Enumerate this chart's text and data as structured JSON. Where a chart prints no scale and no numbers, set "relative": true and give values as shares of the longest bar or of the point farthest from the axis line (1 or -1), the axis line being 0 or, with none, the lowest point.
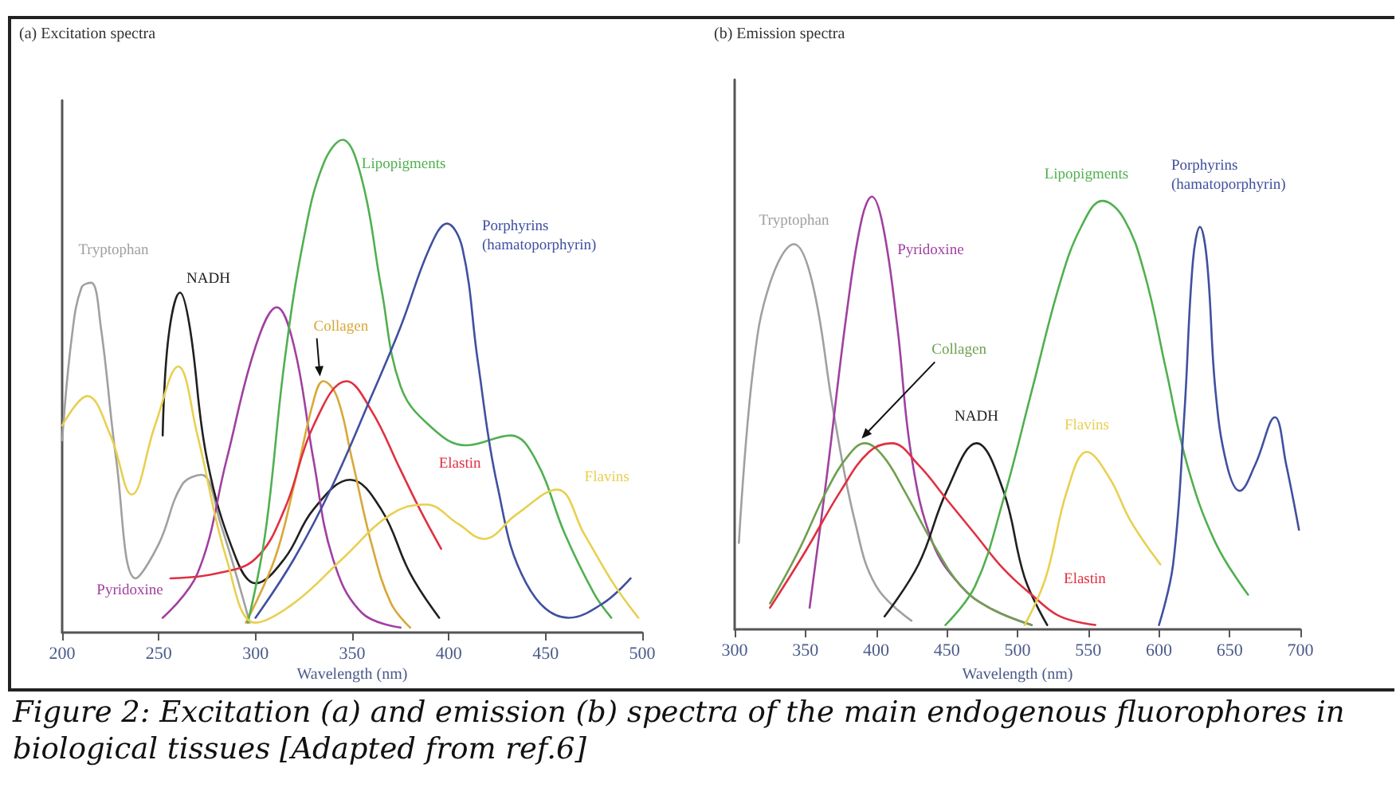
{
  "chart_data": [
    {
      "type": "line",
      "title": "(a) Excitation spectra",
      "xlabel": "Wavelength (nm)",
      "relative": true,
      "xlim": [
        200,
        500
      ],
      "xticks": [
        200,
        250,
        300,
        350,
        400,
        450,
        500
      ],
      "tick_labels": "x",
      "legend": false,
      "grid": false,
      "marker": "none",
      "series": [
        {
          "name": "Tryptophan",
          "color": "#a0a0a0",
          "x": [
            200,
            205,
            210,
            215,
            220,
            228,
            238,
            250,
            262,
            272,
            282,
            297
          ],
          "values": [
            0.39,
            0.6,
            0.7,
            0.71,
            0.62,
            0.35,
            0.11,
            0.18,
            0.3,
            0.32,
            0.22,
            0.02
          ]
        },
        {
          "name": "NADH",
          "color": "#202020",
          "x": [
            252,
            255,
            261,
            266,
            275,
            290,
            300,
            315,
            330,
            349,
            365,
            380,
            395
          ],
          "values": [
            0.4,
            0.6,
            0.69,
            0.62,
            0.35,
            0.15,
            0.1,
            0.15,
            0.25,
            0.31,
            0.25,
            0.12,
            0.03
          ]
        },
        {
          "name": "Pyridoxine",
          "color": "#a040a0",
          "x": [
            252,
            270,
            285,
            300,
            311,
            320,
            330,
            340,
            355,
            375
          ],
          "values": [
            0.03,
            0.12,
            0.35,
            0.58,
            0.66,
            0.58,
            0.35,
            0.15,
            0.04,
            0.01
          ]
        },
        {
          "name": "Collagen",
          "color": "#d8a838",
          "x": [
            295,
            310,
            320,
            330,
            335,
            342,
            350,
            360,
            370,
            380
          ],
          "values": [
            0.02,
            0.15,
            0.3,
            0.47,
            0.51,
            0.48,
            0.35,
            0.18,
            0.06,
            0.01
          ]
        },
        {
          "name": "Elastin",
          "color": "#e03040",
          "x": [
            256,
            280,
            300,
            315,
            330,
            347,
            360,
            375,
            385,
            396
          ],
          "values": [
            0.11,
            0.12,
            0.15,
            0.25,
            0.42,
            0.51,
            0.45,
            0.33,
            0.25,
            0.17
          ]
        },
        {
          "name": "Lipopigments",
          "color": "#50b050",
          "x": [
            296,
            305,
            315,
            325,
            335,
            345,
            355,
            365,
            375,
            390,
            409,
            432,
            445,
            460,
            475,
            484
          ],
          "values": [
            0.02,
            0.2,
            0.55,
            0.8,
            0.95,
            1.0,
            0.92,
            0.7,
            0.5,
            0.42,
            0.38,
            0.4,
            0.35,
            0.2,
            0.08,
            0.03
          ]
        },
        {
          "name": "Porphyrins (hamatoporphyrin)",
          "color": "#4050a0",
          "x": [
            300,
            320,
            340,
            360,
            375,
            390,
            399,
            407,
            415,
            425,
            440,
            462,
            480,
            494
          ],
          "values": [
            0.03,
            0.15,
            0.3,
            0.48,
            0.62,
            0.78,
            0.83,
            0.78,
            0.55,
            0.3,
            0.1,
            0.03,
            0.06,
            0.11
          ]
        },
        {
          "name": "Flavins",
          "color": "#e8d050",
          "x": [
            200,
            213,
            225,
            236,
            248,
            260,
            270,
            285,
            300,
            320,
            345,
            370,
            388,
            405,
            418,
            435,
            456,
            470,
            485,
            498
          ],
          "values": [
            0.42,
            0.48,
            0.4,
            0.28,
            0.42,
            0.54,
            0.4,
            0.15,
            0.02,
            0.06,
            0.15,
            0.24,
            0.26,
            0.22,
            0.19,
            0.24,
            0.29,
            0.2,
            0.1,
            0.03
          ]
        }
      ]
    },
    {
      "type": "line",
      "title": "(b) Emission spectra",
      "xlabel": "Wavelength (nm)",
      "relative": true,
      "xlim": [
        300,
        700
      ],
      "xticks": [
        300,
        350,
        400,
        450,
        500,
        550,
        600,
        650,
        700
      ],
      "tick_labels": "x",
      "legend": false,
      "grid": false,
      "marker": "none",
      "annotations": [
        "Figure 2:  Excitation (a) and emission (b) spectra of the  main endogenous fluorophores in biological tissues [Adapted from ref.6]"
      ],
      "series": [
        {
          "name": "Tryptophan",
          "color": "#a0a0a0",
          "x": [
            303,
            313,
            325,
            342,
            355,
            370,
            385,
            400,
            425
          ],
          "values": [
            0.2,
            0.6,
            0.8,
            0.89,
            0.8,
            0.5,
            0.25,
            0.1,
            0.02
          ]
        },
        {
          "name": "Pyridoxine",
          "color": "#a040a0",
          "x": [
            353,
            365,
            380,
            390,
            397,
            405,
            415,
            425,
            440,
            460,
            480,
            510
          ],
          "values": [
            0.05,
            0.35,
            0.75,
            0.95,
            1.0,
            0.93,
            0.7,
            0.4,
            0.2,
            0.1,
            0.05,
            0.01
          ]
        },
        {
          "name": "Collagen",
          "color": "#6fa050",
          "x": [
            325,
            345,
            365,
            380,
            392,
            405,
            420,
            440,
            460,
            480,
            510
          ],
          "values": [
            0.06,
            0.18,
            0.32,
            0.4,
            0.43,
            0.4,
            0.32,
            0.2,
            0.1,
            0.05,
            0.01
          ]
        },
        {
          "name": "NADH",
          "color": "#202020",
          "x": [
            406,
            430,
            450,
            471,
            490,
            505,
            521
          ],
          "values": [
            0.03,
            0.15,
            0.32,
            0.43,
            0.32,
            0.12,
            0.01
          ]
        },
        {
          "name": "Elastin",
          "color": "#e03040",
          "x": [
            325,
            350,
            375,
            395,
            411,
            430,
            450,
            470,
            490,
            510,
            530,
            555
          ],
          "values": [
            0.05,
            0.18,
            0.32,
            0.41,
            0.43,
            0.38,
            0.3,
            0.22,
            0.14,
            0.08,
            0.03,
            0.01
          ]
        },
        {
          "name": "Flavins",
          "color": "#e8d050",
          "x": [
            505,
            520,
            535,
            549,
            565,
            580,
            601
          ],
          "values": [
            0.01,
            0.12,
            0.32,
            0.41,
            0.35,
            0.25,
            0.15
          ]
        },
        {
          "name": "Lipopigments",
          "color": "#50b050",
          "x": [
            449,
            470,
            490,
            510,
            530,
            545,
            560,
            575,
            590,
            605,
            620,
            640,
            663
          ],
          "values": [
            0.01,
            0.1,
            0.3,
            0.55,
            0.8,
            0.93,
            0.99,
            0.95,
            0.82,
            0.6,
            0.38,
            0.2,
            0.08
          ]
        },
        {
          "name": "Porphyrins (hamatoporphyrin)",
          "color": "#4050a0",
          "x": [
            600,
            610,
            618,
            624,
            629,
            634,
            640,
            648,
            657,
            668,
            682,
            690,
            699
          ],
          "values": [
            0.01,
            0.15,
            0.5,
            0.85,
            0.93,
            0.85,
            0.55,
            0.38,
            0.32,
            0.38,
            0.49,
            0.38,
            0.23
          ]
        }
      ]
    }
  ]
}
